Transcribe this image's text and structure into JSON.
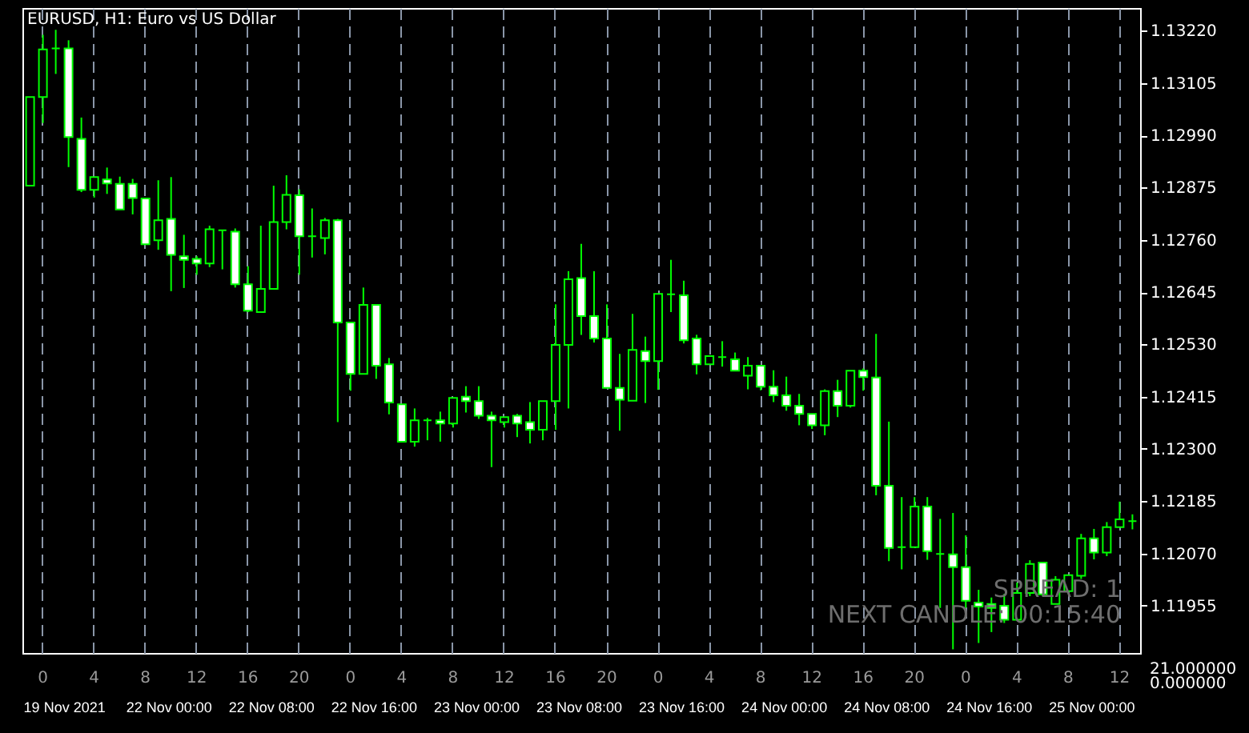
{
  "chart_data": {
    "type": "candlestick",
    "title": "EURUSD, H1: Euro vs US Dollar",
    "categories": [
      null,
      "0",
      null,
      null,
      null,
      "4",
      null,
      null,
      null,
      "8",
      null,
      null,
      null,
      "12",
      null,
      null,
      null,
      "16",
      null,
      null,
      null,
      "20",
      null,
      null,
      null,
      "0",
      null,
      null,
      null,
      "4",
      null,
      null,
      null,
      "8",
      null,
      null,
      null,
      "12",
      null,
      null,
      null,
      "16",
      null,
      null,
      null,
      "20",
      null,
      null,
      null,
      "0",
      null,
      null,
      null,
      "4",
      null,
      null,
      null,
      "8",
      null,
      null,
      null,
      "12",
      null,
      null,
      null,
      "16",
      null,
      null,
      null,
      "20",
      null,
      null,
      null,
      "0",
      null,
      null,
      null,
      "4",
      null,
      null,
      null,
      "8",
      null,
      null,
      null,
      "12",
      null
    ],
    "ohlc": [
      [
        1.12879,
        1.13074,
        1.12879,
        1.13074
      ],
      [
        1.13074,
        1.13211,
        1.13017,
        1.13179
      ],
      [
        1.13181,
        1.13222,
        1.13125,
        1.13181
      ],
      [
        1.13181,
        1.13199,
        1.1292,
        1.12986
      ],
      [
        1.12982,
        1.13029,
        1.12865,
        1.1287
      ],
      [
        1.1287,
        1.12898,
        1.12853,
        1.12898
      ],
      [
        1.12893,
        1.12919,
        1.12861,
        1.12884
      ],
      [
        1.12883,
        1.12899,
        1.12827,
        1.12827
      ],
      [
        1.12883,
        1.12894,
        1.12816,
        1.12852
      ],
      [
        1.12851,
        1.12851,
        1.1275,
        1.1275
      ],
      [
        1.12759,
        1.12891,
        1.12738,
        1.12803
      ],
      [
        1.12806,
        1.12898,
        1.12647,
        1.12727
      ],
      [
        1.12724,
        1.12771,
        1.12654,
        1.12716
      ],
      [
        1.12718,
        1.12724,
        1.12683,
        1.12708
      ],
      [
        1.12708,
        1.12791,
        1.127,
        1.12783
      ],
      [
        1.12781,
        1.12781,
        1.12695,
        1.12781
      ],
      [
        1.12778,
        1.12785,
        1.12655,
        1.12662
      ],
      [
        1.12662,
        1.12702,
        1.12601,
        1.12604
      ],
      [
        1.12601,
        1.12791,
        1.12601,
        1.12652
      ],
      [
        1.12652,
        1.12879,
        1.12652,
        1.12799
      ],
      [
        1.12799,
        1.12902,
        1.12783,
        1.12859
      ],
      [
        1.12858,
        1.12871,
        1.12683,
        1.12768
      ],
      [
        1.12768,
        1.12829,
        1.12721,
        1.12768
      ],
      [
        1.12764,
        1.12808,
        1.12728,
        1.12803
      ],
      [
        1.12803,
        1.12806,
        1.12359,
        1.12578
      ],
      [
        1.12578,
        1.12578,
        1.12428,
        1.12465
      ],
      [
        1.12465,
        1.12655,
        1.12465,
        1.12617
      ],
      [
        1.12617,
        1.12617,
        1.12454,
        1.12483
      ],
      [
        1.12486,
        1.125,
        1.12376,
        1.12402
      ],
      [
        1.12398,
        1.12398,
        1.12316,
        1.12316
      ],
      [
        1.12316,
        1.12389,
        1.12305,
        1.12363
      ],
      [
        1.12363,
        1.12368,
        1.12319,
        1.12363
      ],
      [
        1.12363,
        1.12382,
        1.12316,
        1.12356
      ],
      [
        1.12356,
        1.12412,
        1.12347,
        1.12412
      ],
      [
        1.12415,
        1.12438,
        1.1238,
        1.12405
      ],
      [
        1.12405,
        1.12438,
        1.12366,
        1.12373
      ],
      [
        1.12373,
        1.12382,
        1.1226,
        1.12363
      ],
      [
        1.12359,
        1.1237,
        1.12347,
        1.1237
      ],
      [
        1.12373,
        1.12377,
        1.12326,
        1.12356
      ],
      [
        1.12359,
        1.12403,
        1.12312,
        1.12342
      ],
      [
        1.12342,
        1.12405,
        1.12319,
        1.12405
      ],
      [
        1.12405,
        1.12618,
        1.12342,
        1.12529
      ],
      [
        1.12529,
        1.12691,
        1.12389,
        1.12673
      ],
      [
        1.12676,
        1.12751,
        1.12551,
        1.12592
      ],
      [
        1.12592,
        1.12691,
        1.12534,
        1.12543
      ],
      [
        1.12543,
        1.12618,
        1.12434,
        1.12434
      ],
      [
        1.12434,
        1.12509,
        1.1234,
        1.12408
      ],
      [
        1.12406,
        1.12597,
        1.12406,
        1.12518
      ],
      [
        1.12515,
        1.12547,
        1.12401,
        1.12493
      ],
      [
        1.12493,
        1.12641,
        1.1243,
        1.12641
      ],
      [
        1.1264,
        1.12716,
        1.12601,
        1.1264
      ],
      [
        1.12638,
        1.1267,
        1.12532,
        1.12539
      ],
      [
        1.12543,
        1.12551,
        1.12464,
        1.12486
      ],
      [
        1.12486,
        1.12504,
        1.12486,
        1.12504
      ],
      [
        1.12502,
        1.12537,
        1.12481,
        1.12502
      ],
      [
        1.12497,
        1.12512,
        1.12472,
        1.12472
      ],
      [
        1.12461,
        1.12502,
        1.12431,
        1.12483
      ],
      [
        1.12483,
        1.12483,
        1.12429,
        1.12437
      ],
      [
        1.12437,
        1.12473,
        1.12403,
        1.12418
      ],
      [
        1.12418,
        1.12459,
        1.12384,
        1.12395
      ],
      [
        1.12395,
        1.12421,
        1.12352,
        1.12377
      ],
      [
        1.12377,
        1.12377,
        1.12344,
        1.12352
      ],
      [
        1.12352,
        1.12431,
        1.1233,
        1.12427
      ],
      [
        1.12427,
        1.12452,
        1.1237,
        1.12395
      ],
      [
        1.12395,
        1.12472,
        1.12391,
        1.12472
      ],
      [
        1.12472,
        1.12477,
        1.12428,
        1.12458
      ],
      [
        1.12457,
        1.12553,
        1.12198,
        1.12219
      ],
      [
        1.12219,
        1.1236,
        1.12053,
        1.12082
      ],
      [
        1.12084,
        1.12194,
        1.12035,
        1.12084
      ],
      [
        1.12084,
        1.12194,
        1.12084,
        1.12173
      ],
      [
        1.12173,
        1.12194,
        1.12056,
        1.12075
      ],
      [
        1.12069,
        1.12146,
        1.1195,
        1.12069
      ],
      [
        1.12068,
        1.12159,
        1.11859,
        1.1204
      ],
      [
        1.1204,
        1.1211,
        1.1195,
        1.11966
      ],
      [
        1.11962,
        1.1199,
        1.11873,
        1.11953
      ],
      [
        1.11959,
        1.11973,
        1.11897,
        1.1195
      ],
      [
        1.11955,
        1.11981,
        1.11917,
        1.11924
      ],
      [
        1.11924,
        1.12006,
        1.11924,
        1.11983
      ],
      [
        1.11983,
        1.12055,
        1.11976,
        1.12047
      ],
      [
        1.1205,
        1.1205,
        1.11976,
        1.1198
      ],
      [
        1.11959,
        1.1202,
        1.11959,
        1.12012
      ],
      [
        1.11987,
        1.12022,
        1.11987,
        1.12022
      ],
      [
        1.12021,
        1.12113,
        1.12014,
        1.12103
      ],
      [
        1.12103,
        1.12124,
        1.12057,
        1.12072
      ],
      [
        1.12072,
        1.12139,
        1.12064,
        1.12128
      ],
      [
        1.12128,
        1.12184,
        1.12128,
        1.12145
      ],
      [
        1.12141,
        1.12156,
        1.12123,
        1.12141
      ]
    ],
    "color": "#00ff00",
    "ylim": [
      1.11851,
      1.1327
    ],
    "yticks": [
      {
        "value": 1.1322,
        "label": "1.13220"
      },
      {
        "value": 1.13105,
        "label": "1.13105"
      },
      {
        "value": 1.1299,
        "label": "1.12990"
      },
      {
        "value": 1.12875,
        "label": "1.12875"
      },
      {
        "value": 1.1276,
        "label": "1.12760"
      },
      {
        "value": 1.12645,
        "label": "1.12645"
      },
      {
        "value": 1.1253,
        "label": "1.12530"
      },
      {
        "value": 1.12415,
        "label": "1.12415"
      },
      {
        "value": 1.123,
        "label": "1.12300"
      },
      {
        "value": 1.12185,
        "label": "1.12185"
      },
      {
        "value": 1.1207,
        "label": "1.12070"
      },
      {
        "value": 1.11955,
        "label": "1.11955"
      }
    ],
    "grid": "x",
    "annotations": [
      "19 Nov 2021",
      "22 Nov 00:00",
      "22 Nov 08:00",
      "22 Nov 16:00",
      "23 Nov 00:00",
      "23 Nov 08:00",
      "23 Nov 16:00",
      "24 Nov 00:00",
      "24 Nov 08:00",
      "24 Nov 16:00",
      "25 Nov 00:00",
      "SPREAD: 1",
      "NEXT CANDLE: 00:15:40",
      "21.000000",
      "0.000000"
    ]
  }
}
